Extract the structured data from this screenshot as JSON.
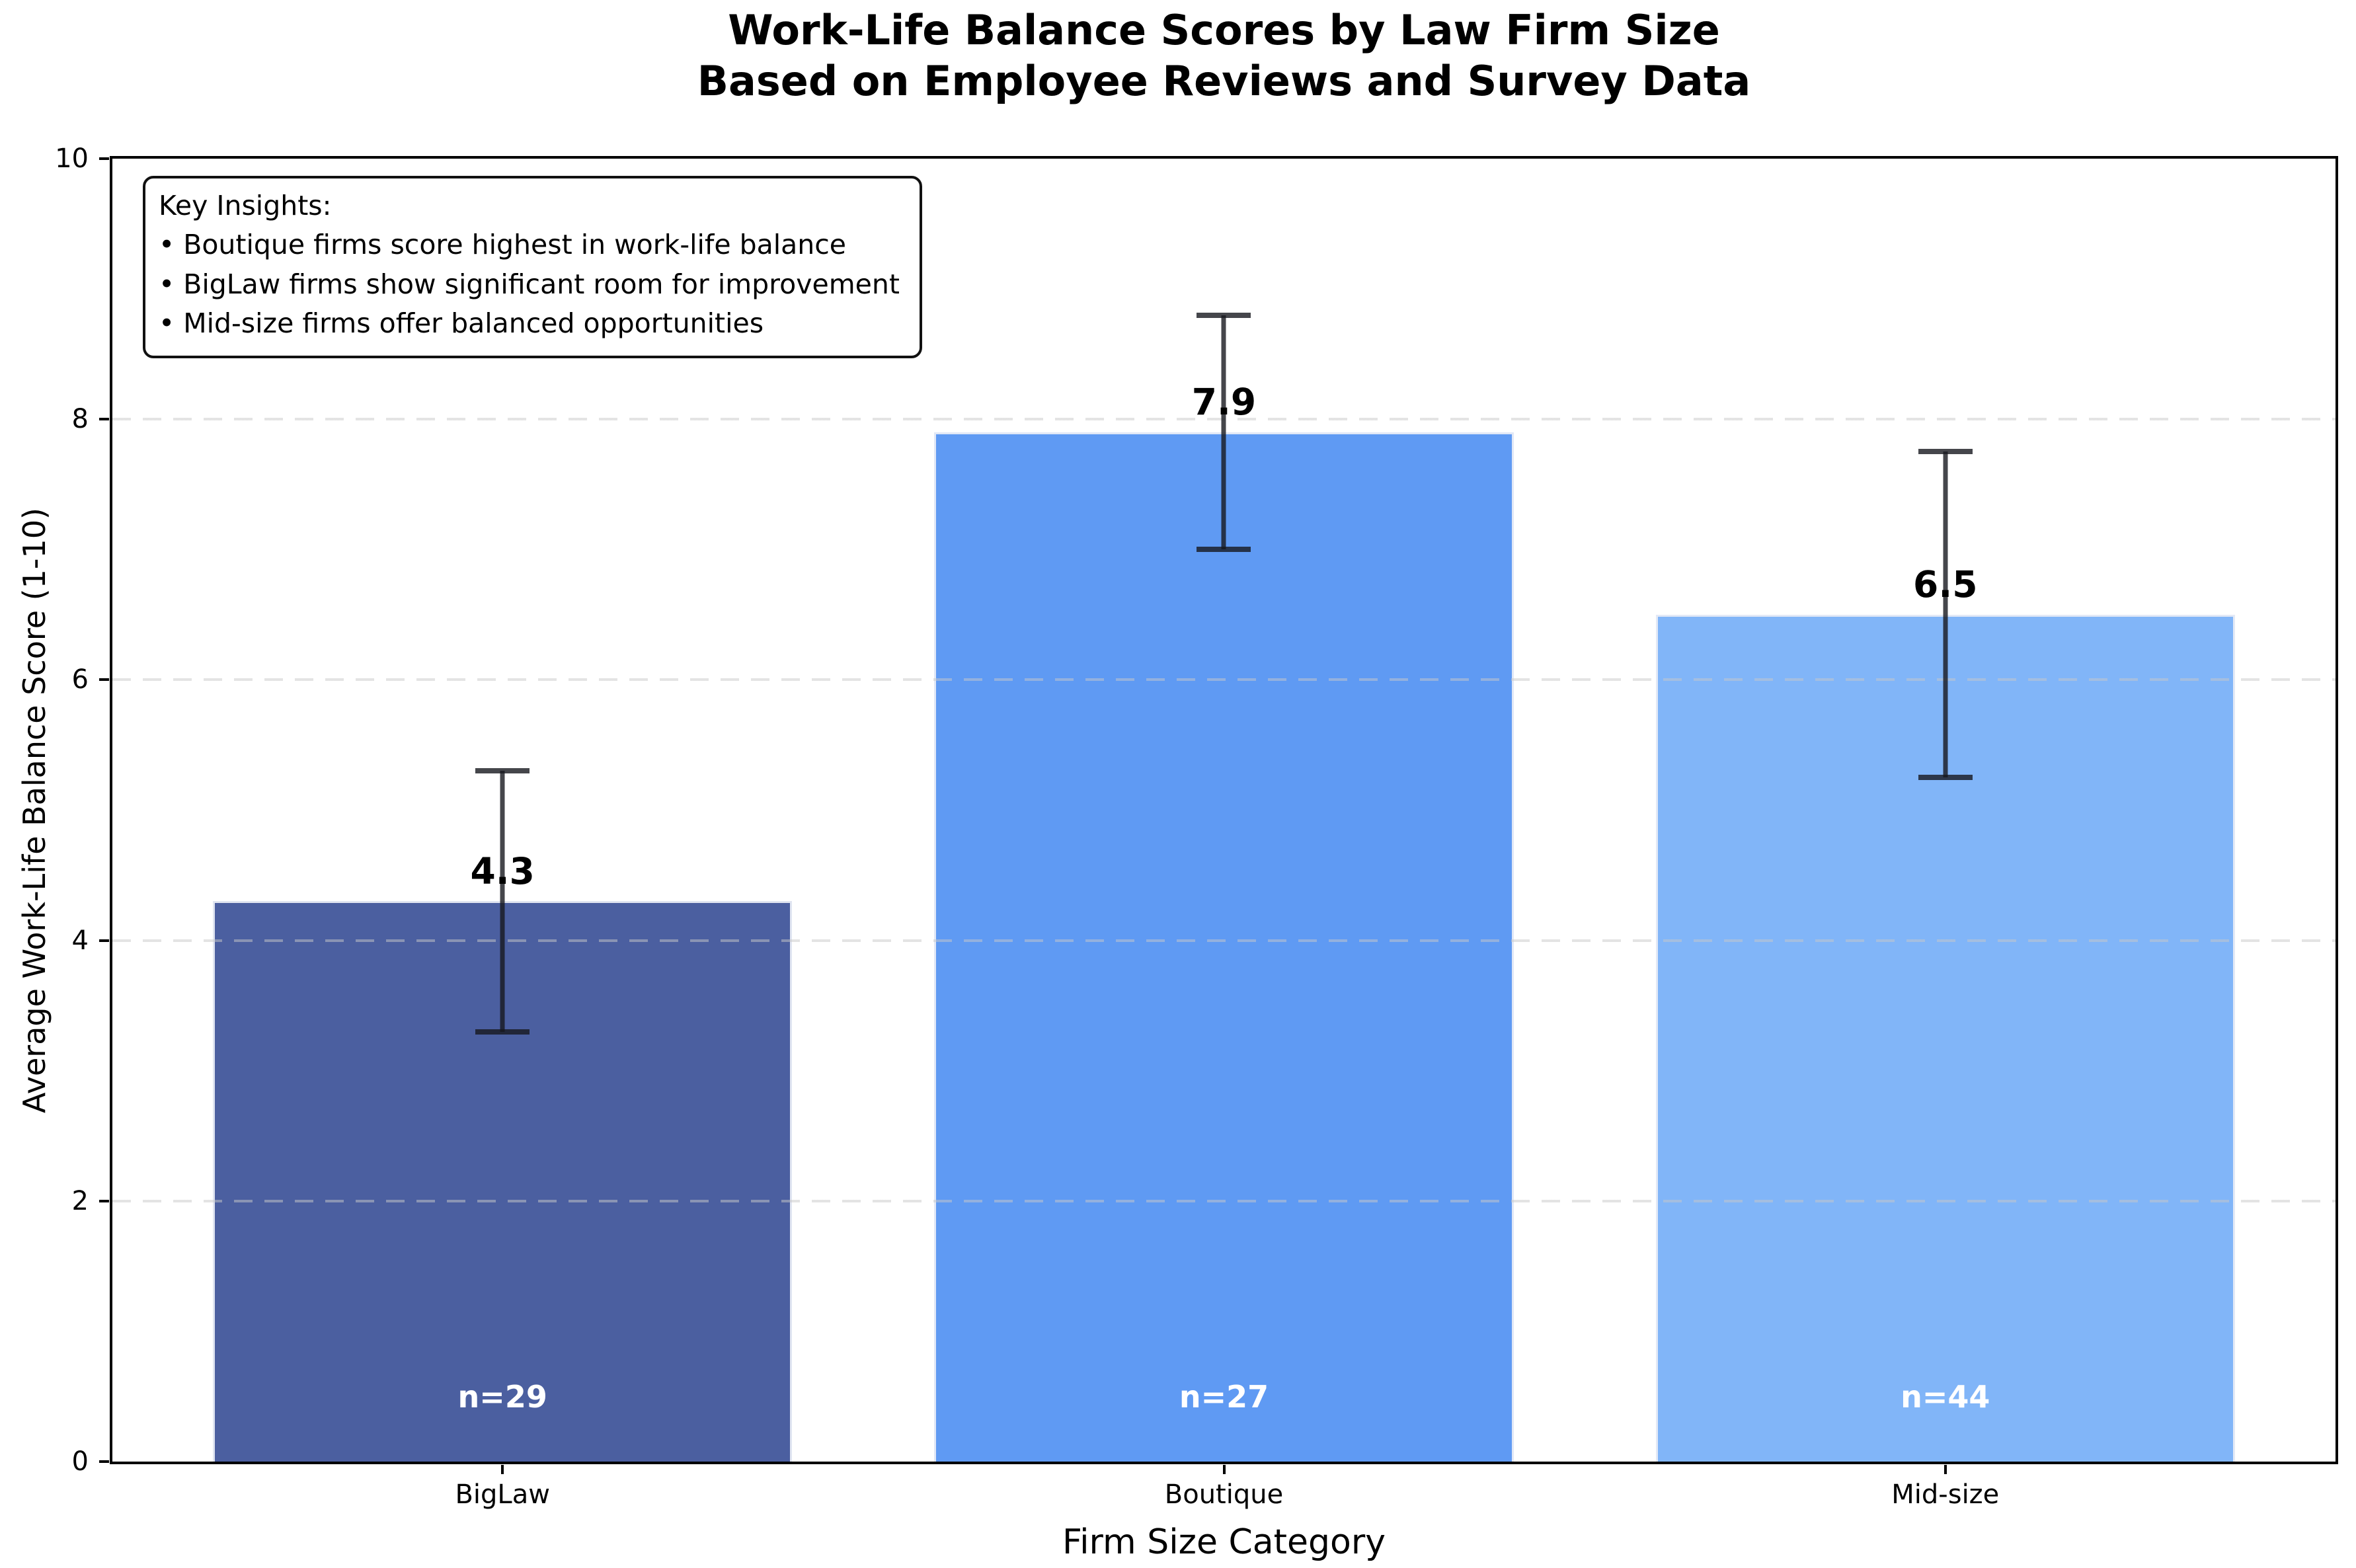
{
  "title": {
    "line1": "Work-Life Balance Scores by Law Firm Size",
    "line2": "Based on Employee Reviews and Survey Data"
  },
  "insights": {
    "heading": "Key Insights:",
    "bullets": [
      "• Boutique firms score highest in work-life balance",
      "• BigLaw firms show significant room for improvement",
      "• Mid-size firms offer balanced opportunities"
    ]
  },
  "chart_data": {
    "type": "bar",
    "title": "Work-Life Balance Scores by Law Firm Size\nBased on Employee Reviews and Survey Data",
    "categories": [
      "BigLaw",
      "Boutique",
      "Mid-size"
    ],
    "values": [
      4.3,
      7.9,
      6.5
    ],
    "errors": [
      1.0,
      0.9,
      1.25
    ],
    "value_labels": [
      "4.3",
      "7.9",
      "6.5"
    ],
    "sample_sizes": [
      "n=29",
      "n=27",
      "n=44"
    ],
    "bar_colors": [
      "#4b5fa0",
      "#5f9af3",
      "#81b5f8"
    ],
    "error_bar_color": "#2a2e36",
    "xlabel": "Firm Size Category",
    "ylabel": "Average Work-Life Balance Score (1-10)",
    "ylim": [
      0,
      10
    ],
    "yticks": [
      0,
      2,
      4,
      6,
      8,
      10
    ],
    "grid": "horizontal dashed at 2,4,6,8",
    "legend_position": "none"
  }
}
